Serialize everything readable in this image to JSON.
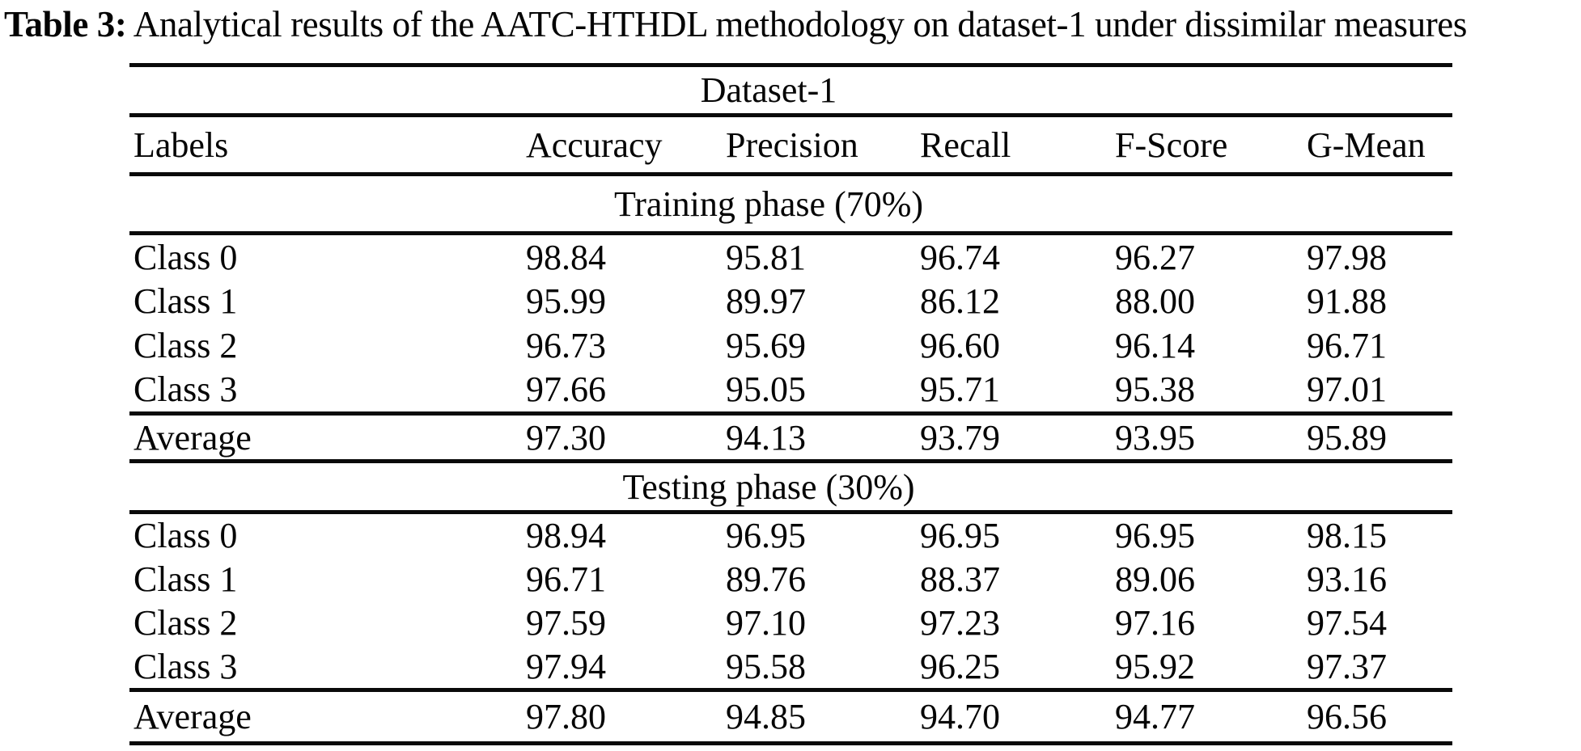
{
  "title": {
    "label": "Table 3:",
    "text": " Analytical results of the AATC-HTHDL methodology on dataset-1 under dissimilar measures"
  },
  "table": {
    "span_header": "Dataset-1",
    "columns": [
      "Labels",
      "Accuracy",
      "Precision",
      "Recall",
      "F-Score",
      "G-Mean"
    ],
    "sections": [
      {
        "header": "Training phase (70%)",
        "rows": [
          {
            "label": "Class 0",
            "values": [
              "98.84",
              "95.81",
              "96.74",
              "96.27",
              "97.98"
            ]
          },
          {
            "label": "Class 1",
            "values": [
              "95.99",
              "89.97",
              "86.12",
              "88.00",
              "91.88"
            ]
          },
          {
            "label": "Class 2",
            "values": [
              "96.73",
              "95.69",
              "96.60",
              "96.14",
              "96.71"
            ]
          },
          {
            "label": "Class 3",
            "values": [
              "97.66",
              "95.05",
              "95.71",
              "95.38",
              "97.01"
            ]
          },
          {
            "label": "Average",
            "values": [
              "97.30",
              "94.13",
              "93.79",
              "93.95",
              "95.89"
            ]
          }
        ]
      },
      {
        "header": "Testing phase (30%)",
        "rows": [
          {
            "label": "Class 0",
            "values": [
              "98.94",
              "96.95",
              "96.95",
              "96.95",
              "98.15"
            ]
          },
          {
            "label": "Class 1",
            "values": [
              "96.71",
              "89.76",
              "88.37",
              "89.06",
              "93.16"
            ]
          },
          {
            "label": "Class 2",
            "values": [
              "97.59",
              "97.10",
              "97.23",
              "97.16",
              "97.54"
            ]
          },
          {
            "label": "Class 3",
            "values": [
              "97.94",
              "95.58",
              "96.25",
              "95.92",
              "97.37"
            ]
          },
          {
            "label": "Average",
            "values": [
              "97.80",
              "94.85",
              "94.70",
              "94.77",
              "96.56"
            ]
          }
        ]
      }
    ]
  }
}
